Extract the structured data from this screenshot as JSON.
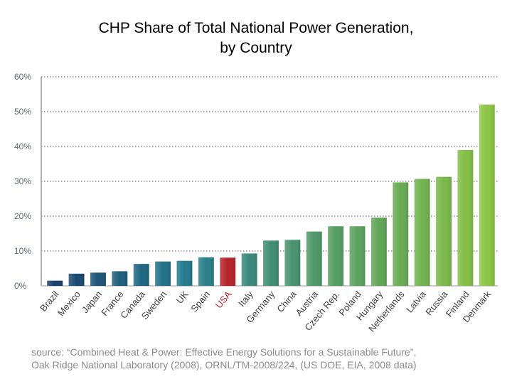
{
  "title_line1": "CHP Share of Total National Power Generation,",
  "title_line2": "by Country",
  "source_line1": "source:  “Combined Heat & Power: Effective Energy Solutions for a Sustainable Future”,",
  "source_line2": "Oak Ridge National Laboratory (2008), ORNL/TM-2008/224, (US DOE, EIA, 2008 data)",
  "colors": {
    "highlight": "#b5232b",
    "grid": "#555555",
    "tick_text": "#5b6b78",
    "label_text": "#3f3f3f",
    "highlight_text": "#c0272d"
  },
  "chart_data": {
    "type": "bar",
    "title": "CHP Share of Total National Power Generation, by Country",
    "xlabel": "",
    "ylabel": "",
    "ylim": [
      0,
      60
    ],
    "yticks": [
      "0%",
      "10%",
      "20%",
      "30%",
      "40%",
      "50%",
      "60%"
    ],
    "grid": true,
    "highlight_category": "USA",
    "categories": [
      "Brazil",
      "Mexico",
      "Japan",
      "France",
      "Canada",
      "Sweden",
      "UK",
      "Spain",
      "USA",
      "Italy",
      "Germany",
      "China",
      "Austria",
      "Czech Rep.",
      "Poland",
      "Hungary",
      "Netherlands",
      "Latvia",
      "Russia",
      "Finland",
      "Denmark"
    ],
    "values": [
      1.5,
      3.5,
      3.8,
      4.2,
      6.3,
      7.0,
      7.2,
      8.2,
      8.1,
      9.3,
      13.0,
      13.2,
      15.6,
      17.1,
      17.1,
      19.6,
      29.7,
      30.7,
      31.3,
      39.0,
      52.0
    ]
  }
}
